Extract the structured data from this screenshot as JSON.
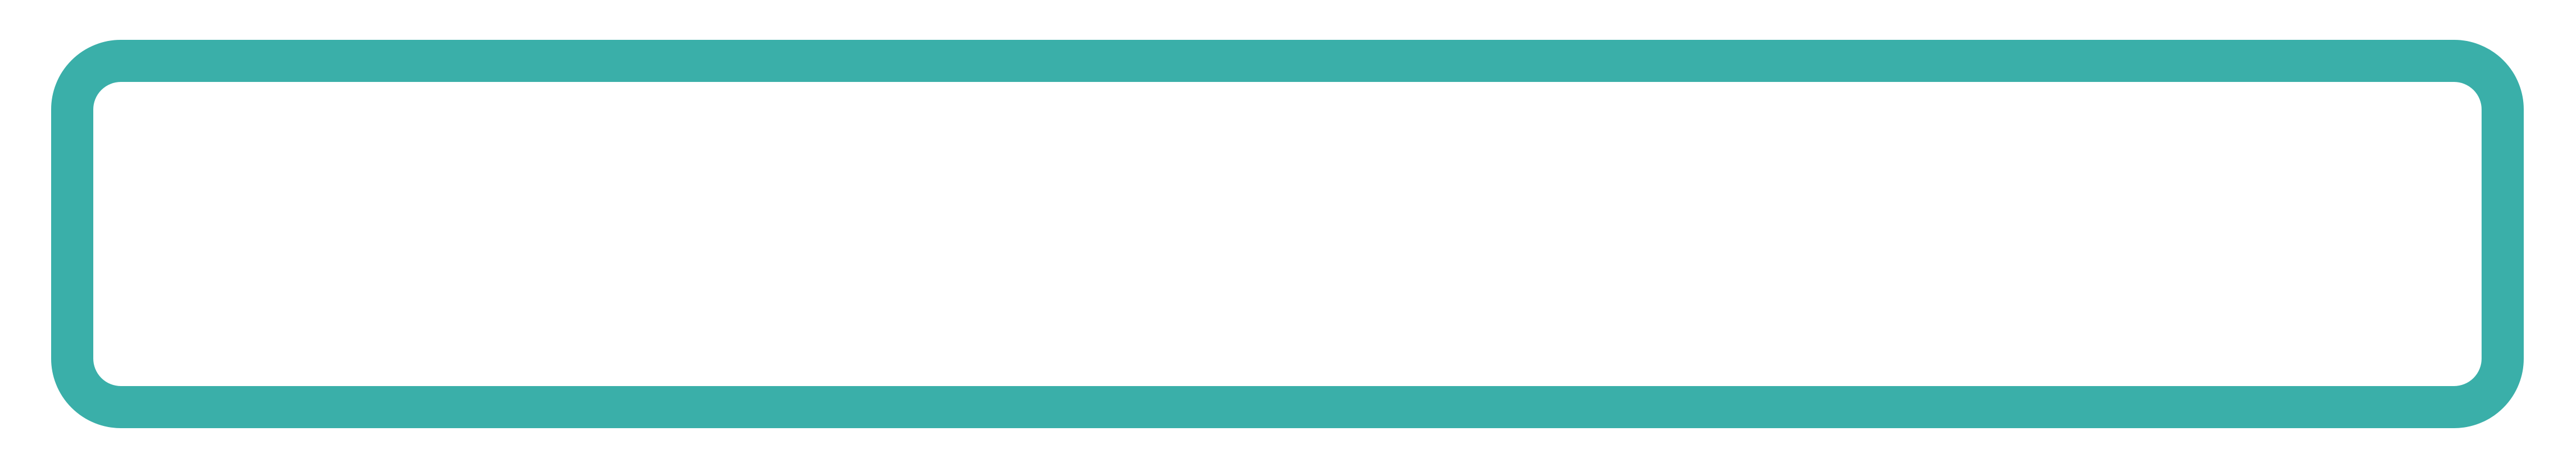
{
  "colors": {
    "background": "#ffffff",
    "frame_border": "#3aafa9",
    "frame_fill": "#ffffff"
  },
  "frame": {
    "content_text": ""
  }
}
